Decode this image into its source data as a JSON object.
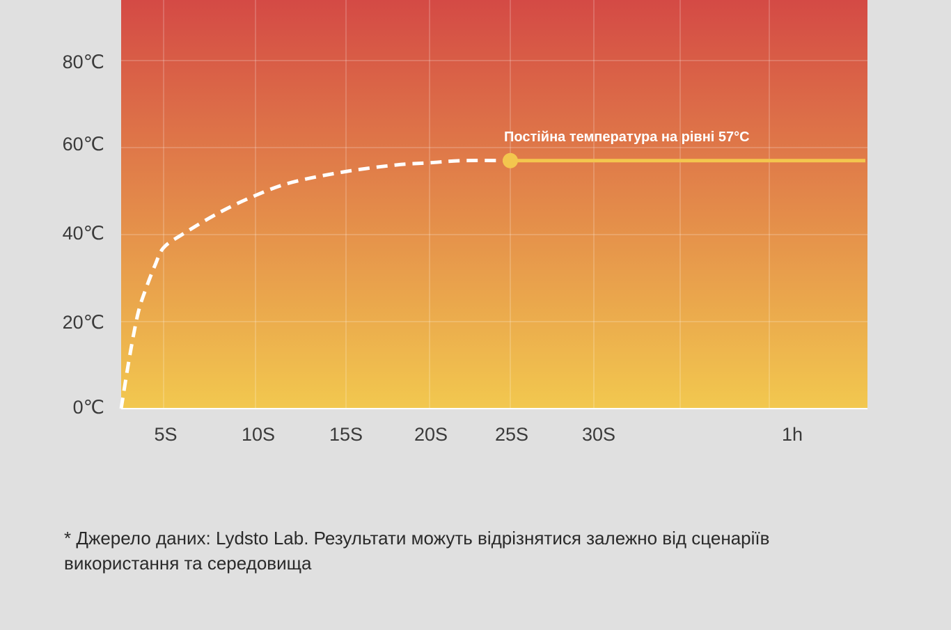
{
  "chart_data": {
    "type": "line",
    "x_tick_labels": [
      "5S",
      "10S",
      "15S",
      "20S",
      "25S",
      "30S",
      "1h"
    ],
    "y_tick_labels": [
      "0℃",
      "20℃",
      "40℃",
      "60℃",
      "80℃"
    ],
    "y_ticks": [
      0,
      20,
      40,
      60,
      80
    ],
    "ylim": [
      0,
      95
    ],
    "series": [
      {
        "style": "dashed",
        "color": "#ffffff",
        "x": [
          0,
          1,
          2,
          3,
          4,
          5,
          6,
          8,
          10,
          12,
          15,
          18,
          20,
          22,
          25
        ],
        "y": [
          0,
          12,
          22,
          28,
          33,
          37,
          40,
          45,
          49,
          52,
          54.5,
          56,
          56.5,
          57,
          57
        ]
      },
      {
        "style": "solid",
        "color": "#f3c64e",
        "x": [
          25,
          60
        ],
        "y": [
          57,
          57
        ]
      }
    ],
    "annotations": [
      {
        "x": 25,
        "y": 57,
        "text": "Постійна температура на рівні 57°C"
      }
    ],
    "background_gradient": [
      "#d44a45",
      "#f2c84f"
    ],
    "marker_color": "#f3c64e"
  },
  "footnote": {
    "line1": "* Джерело даних: Lydsto Lab. Результати можуть відрізнятися залежно від сценаріїв",
    "line2": "використання та середовища"
  }
}
